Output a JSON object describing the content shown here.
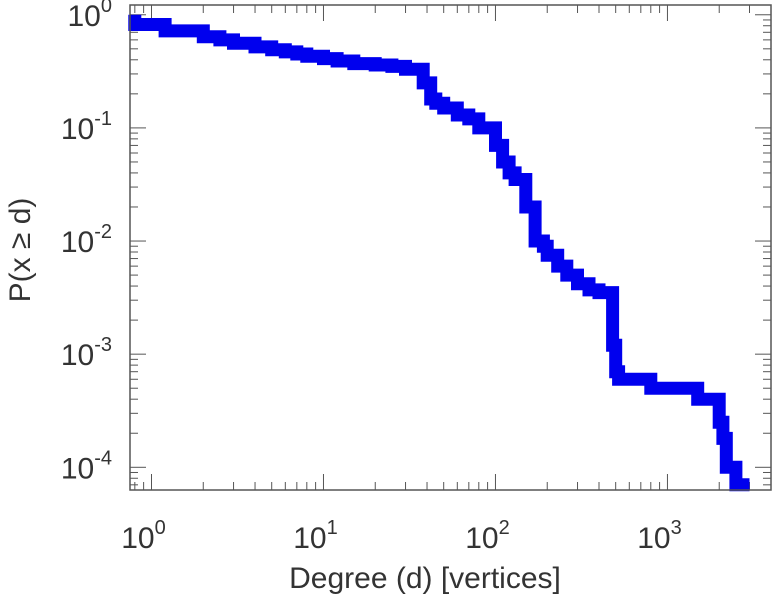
{
  "chart_data": {
    "type": "line",
    "step": true,
    "xlabel": "Degree (d) [vertices]",
    "ylabel": "P(x ≥ d)",
    "xscale": "log",
    "yscale": "log",
    "xlim": [
      0.75,
      4000
    ],
    "ylim": [
      6.3e-05,
      1.22
    ],
    "x_ticks": [
      {
        "base": "10",
        "exp": "0",
        "value": 1
      },
      {
        "base": "10",
        "exp": "1",
        "value": 10
      },
      {
        "base": "10",
        "exp": "2",
        "value": 100
      },
      {
        "base": "10",
        "exp": "3",
        "value": 1000
      }
    ],
    "y_ticks": [
      {
        "base": "10",
        "exp": "0",
        "value": 1
      },
      {
        "base": "10",
        "exp": "-1",
        "value": 0.1
      },
      {
        "base": "10",
        "exp": "-2",
        "value": 0.01
      },
      {
        "base": "10",
        "exp": "-3",
        "value": 0.001
      },
      {
        "base": "10",
        "exp": "-4",
        "value": 0.0001
      }
    ],
    "grid": false,
    "series": [
      {
        "color": "#0000ee",
        "x": [
          0.8,
          1.2,
          2,
          2.5,
          3,
          4,
          5,
          6,
          7,
          8,
          10,
          12,
          15,
          20,
          25,
          30,
          38,
          42,
          45,
          50,
          60,
          70,
          80,
          100,
          110,
          120,
          130,
          150,
          170,
          190,
          200,
          230,
          260,
          300,
          350,
          400,
          480,
          500,
          520,
          600,
          800,
          1000,
          1500,
          2000,
          2100,
          2200,
          2500,
          3000
        ],
        "y": [
          1.0,
          0.82,
          0.72,
          0.64,
          0.6,
          0.56,
          0.52,
          0.49,
          0.47,
          0.45,
          0.43,
          0.41,
          0.39,
          0.37,
          0.36,
          0.35,
          0.33,
          0.25,
          0.18,
          0.165,
          0.15,
          0.13,
          0.12,
          0.1,
          0.07,
          0.05,
          0.04,
          0.035,
          0.02,
          0.01,
          0.009,
          0.0075,
          0.006,
          0.005,
          0.0042,
          0.0037,
          0.0035,
          0.0012,
          0.0007,
          0.0006,
          0.0006,
          0.0005,
          0.0005,
          0.0004,
          0.00025,
          0.00018,
          0.0001,
          7e-05
        ]
      }
    ]
  }
}
